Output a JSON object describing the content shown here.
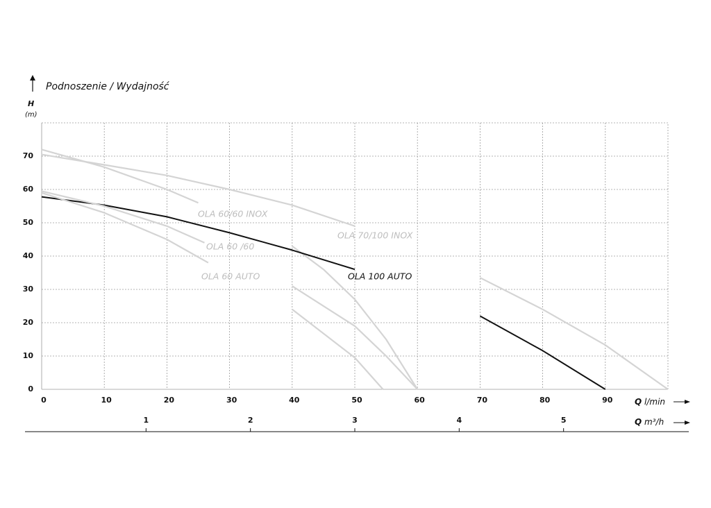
{
  "chart_data": {
    "type": "line",
    "title": "Podnoszenie / Wydajność",
    "y_label": {
      "symbol": "H",
      "unit": "(m)"
    },
    "x_label": {
      "symbol": "Q",
      "unit": "l/min"
    },
    "x2_label": {
      "symbol": "Q",
      "unit": "m³/h"
    },
    "xlim": [
      0,
      100
    ],
    "xticks": [
      0,
      10,
      20,
      30,
      40,
      50,
      60,
      70,
      80,
      90
    ],
    "x2lim": [
      0,
      6
    ],
    "x2ticks": [
      1,
      2,
      3,
      4,
      5
    ],
    "ylim": [
      0,
      80
    ],
    "yticks": [
      0,
      10,
      20,
      30,
      40,
      50,
      60,
      70
    ],
    "grid": true,
    "series": [
      {
        "name": "OLA 60/60 INOX",
        "color": "#d4d4d4",
        "x": [
          0,
          10,
          20,
          25,
          37,
          40,
          45,
          50,
          55,
          60
        ],
        "values": [
          72,
          66.7,
          60,
          56,
          null,
          43,
          36,
          27,
          15,
          0
        ]
      },
      {
        "name": "OLA 70/100 INOX",
        "color": "#d4d4d4",
        "x": [
          0,
          10,
          20,
          30,
          40,
          50,
          56,
          70,
          80,
          90,
          100
        ],
        "values": [
          70.5,
          67.4,
          64.2,
          60,
          55.3,
          49,
          null,
          33.5,
          24,
          13.3,
          0
        ]
      },
      {
        "name": "OLA 100 AUTO",
        "color": "#111111",
        "x": [
          0,
          10,
          20,
          30,
          40,
          50,
          56.5,
          70,
          80,
          90
        ],
        "values": [
          57.8,
          55.3,
          51.8,
          47,
          41.8,
          36,
          null,
          22,
          11.6,
          0
        ]
      },
      {
        "name": "OLA 60 /60",
        "color": "#d4d4d4",
        "x": [
          0,
          10,
          20,
          26,
          30,
          40,
          50,
          55,
          60
        ],
        "values": [
          59.5,
          55,
          49,
          44,
          null,
          31,
          19,
          10,
          0
        ]
      },
      {
        "name": "OLA 60 AUTO",
        "color": "#d4d4d4",
        "x": [
          0,
          10,
          20,
          26.6,
          35.5,
          40,
          50,
          54.5
        ],
        "values": [
          59,
          53,
          45,
          38,
          null,
          24,
          9.5,
          0
        ]
      }
    ]
  }
}
